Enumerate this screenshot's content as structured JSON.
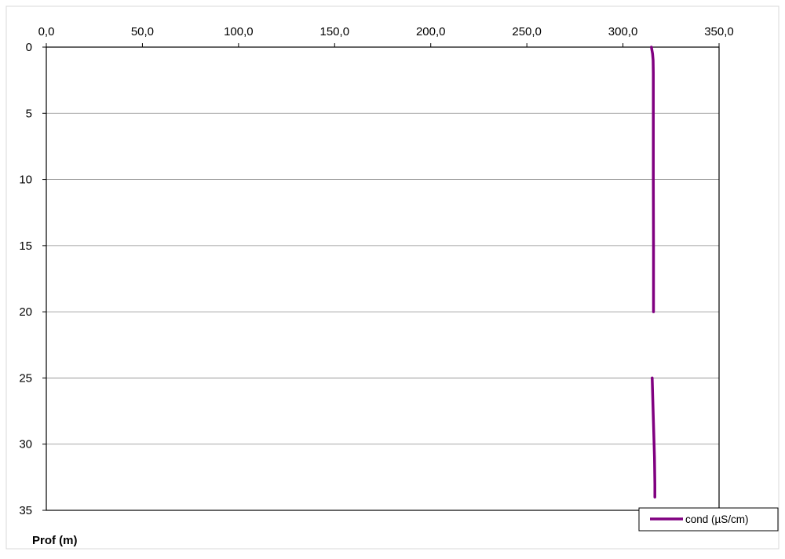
{
  "chart_data": {
    "type": "line",
    "title": "",
    "xlabel": "",
    "ylabel": "Prof (m)",
    "x_axis_position": "top",
    "y_axis_inverted": true,
    "xlim": [
      0,
      350
    ],
    "ylim": [
      0,
      35
    ],
    "x_ticks": [
      0,
      50,
      100,
      150,
      200,
      250,
      300,
      350
    ],
    "x_tick_labels": [
      "0,0",
      "50,0",
      "100,0",
      "150,0",
      "200,0",
      "250,0",
      "300,0",
      "350,0"
    ],
    "y_ticks": [
      0,
      5,
      10,
      15,
      20,
      25,
      30,
      35
    ],
    "y_tick_labels": [
      "0",
      "5",
      "10",
      "15",
      "20",
      "25",
      "30",
      "35"
    ],
    "grid": "horizontal",
    "legend_position": "bottom-right",
    "series": [
      {
        "name": "cond (µS/cm)",
        "color": "#800080",
        "segments": [
          [
            {
              "x": 314.8,
              "y": 0
            },
            {
              "x": 315.4,
              "y": 0.5
            },
            {
              "x": 315.7,
              "y": 1
            },
            {
              "x": 315.8,
              "y": 2
            },
            {
              "x": 315.8,
              "y": 5
            },
            {
              "x": 315.8,
              "y": 10
            },
            {
              "x": 315.9,
              "y": 15
            },
            {
              "x": 315.9,
              "y": 20
            }
          ],
          [
            {
              "x": 315.2,
              "y": 25
            },
            {
              "x": 315.6,
              "y": 27
            },
            {
              "x": 316.0,
              "y": 29
            },
            {
              "x": 316.4,
              "y": 31
            },
            {
              "x": 316.6,
              "y": 33
            },
            {
              "x": 316.6,
              "y": 34
            }
          ]
        ]
      }
    ]
  }
}
